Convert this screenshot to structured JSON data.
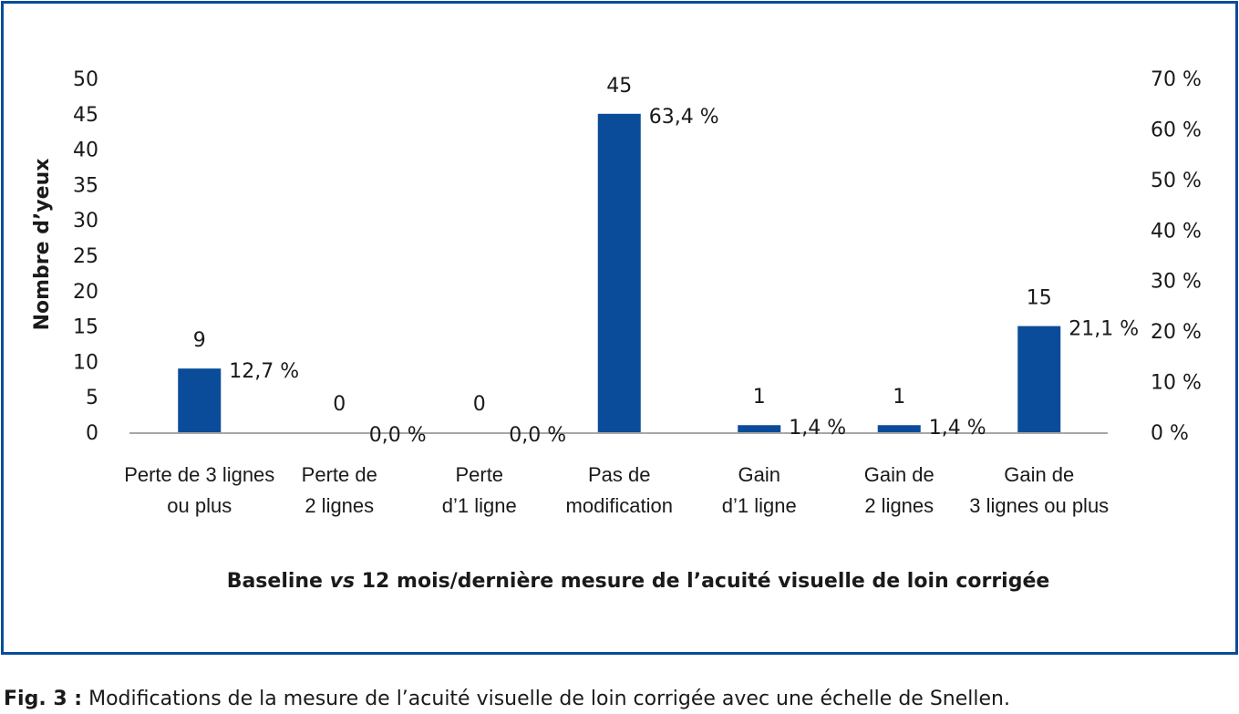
{
  "figure": {
    "caption_label": "Fig. 3 :",
    "caption_text": "Modifications de la mesure de l’acuité visuelle de loin corrigée avec une échelle de Snellen."
  },
  "chart_data": {
    "type": "bar",
    "title": "",
    "ylabel": "Nombre d’yeux",
    "y2label": "",
    "xlabel_parts": [
      {
        "text": "Baseline ",
        "italic": false
      },
      {
        "text": "vs",
        "italic": true
      },
      {
        "text": " 12 mois/dernière mesure de l’acuité visuelle de loin corrigée",
        "italic": false
      }
    ],
    "categories": [
      [
        "Perte de 3 lignes",
        "ou plus"
      ],
      [
        "Perte de",
        "2 lignes"
      ],
      [
        "Perte",
        "d’1 ligne"
      ],
      [
        "Pas de",
        "modification"
      ],
      [
        "Gain",
        "d’1 ligne"
      ],
      [
        "Gain de",
        "2 lignes"
      ],
      [
        "Gain de",
        "3 lignes ou plus"
      ]
    ],
    "values": [
      9,
      0,
      0,
      45,
      1,
      1,
      15
    ],
    "value_labels": [
      "9",
      "0",
      "0",
      "45",
      "1",
      "1",
      "15"
    ],
    "percent_labels": [
      "12,7 %",
      "0,0 %",
      "0,0 %",
      "63,4 %",
      "1,4 %",
      "1,4 %",
      "21,1 %"
    ],
    "ylim": [
      0,
      50
    ],
    "yticks": [
      0,
      5,
      10,
      15,
      20,
      25,
      30,
      35,
      40,
      45,
      50
    ],
    "y2lim": [
      0,
      70
    ],
    "y2ticks": [
      "0 %",
      "10 %",
      "20 %",
      "30 %",
      "40 %",
      "50 %",
      "60 %",
      "70 %"
    ],
    "bar_color": "#0a4c9a",
    "frame_color": "#0a4c9a",
    "axis_color": "#a6a6a6",
    "grid": false,
    "legend": "none"
  }
}
